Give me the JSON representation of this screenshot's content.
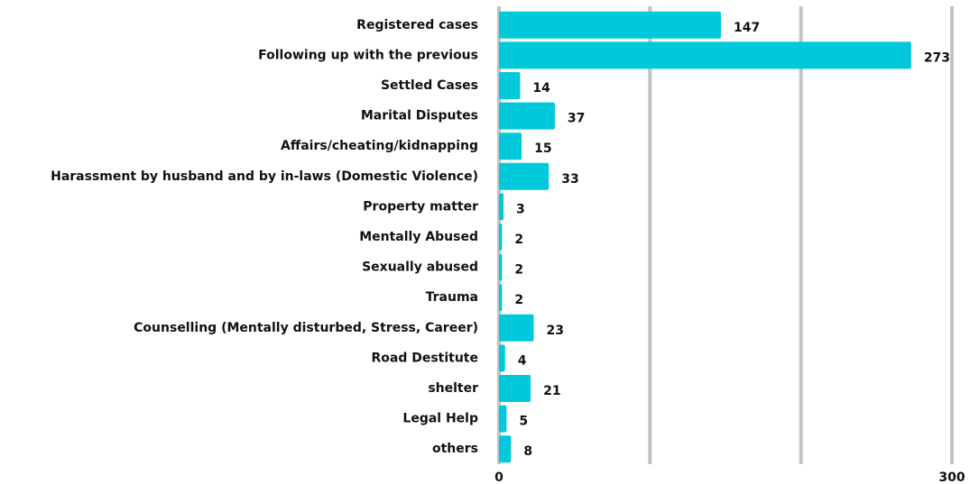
{
  "chart_data": {
    "type": "barh",
    "categories": [
      "Registered cases",
      "Following up with the previous",
      "Settled Cases",
      "Marital Disputes",
      "Affairs/cheating/kidnapping",
      "Harassment by husband and by in-laws (Domestic Violence)",
      "Property matter",
      "Mentally Abused",
      "Sexually abused",
      "Trauma",
      "Counselling (Mentally disturbed, Stress, Career)",
      "Road Destitute",
      "shelter",
      "Legal Help",
      "others"
    ],
    "values": [
      147,
      273,
      14,
      37,
      15,
      33,
      3,
      2,
      2,
      2,
      23,
      4,
      21,
      5,
      8
    ],
    "color": "#00c9dc",
    "xlim": [
      0,
      300
    ],
    "xticks": [
      0,
      300
    ],
    "xgrid": [
      0,
      100,
      200,
      300
    ],
    "grid_color": "#c3c3c3"
  }
}
